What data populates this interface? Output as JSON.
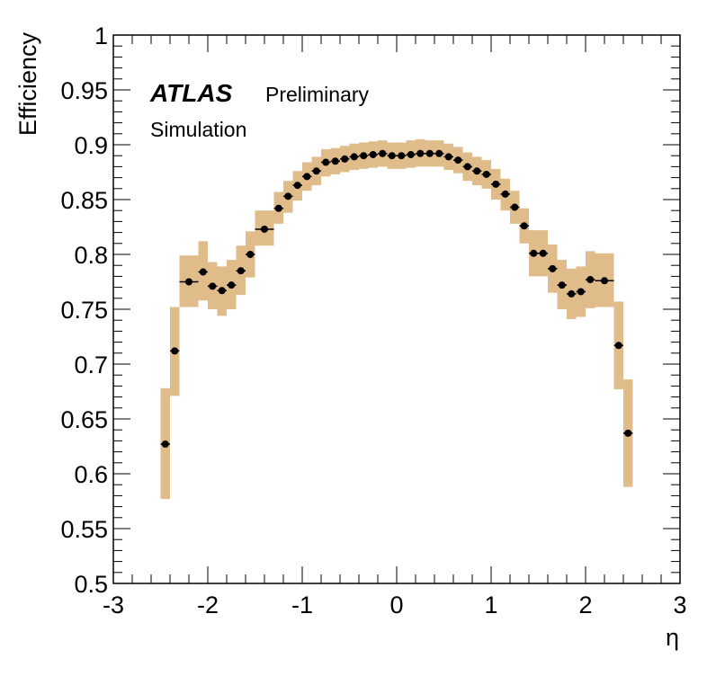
{
  "chart_data": {
    "type": "scatter",
    "xlabel": "η",
    "ylabel": "Efficiency",
    "xlim": [
      -3,
      3
    ],
    "ylim": [
      0.5,
      1
    ],
    "x_ticks": [
      -3,
      -2,
      -1,
      0,
      1,
      2,
      3
    ],
    "y_ticks": [
      0.5,
      0.55,
      0.6,
      0.65,
      0.7,
      0.75,
      0.8,
      0.85,
      0.9,
      0.95,
      1
    ],
    "x_tick_labels": [
      "-3",
      "-2",
      "-1",
      "0",
      "1",
      "2",
      "3"
    ],
    "y_tick_labels": [
      "0.5",
      "0.55",
      "0.6",
      "0.65",
      "0.7",
      "0.75",
      "0.8",
      "0.85",
      "0.9",
      "0.95",
      "1"
    ],
    "grid": false,
    "annotations": {
      "atlas": "ATLAS",
      "status": "Preliminary",
      "sample": "Simulation"
    },
    "band_color": "#e0bc8a",
    "marker_color": "#000000",
    "bin_width": 0.1,
    "points": [
      {
        "x": -2.45,
        "y": 0.627,
        "band": [
          0.577,
          0.678
        ]
      },
      {
        "x": -2.35,
        "y": 0.712,
        "band": [
          0.671,
          0.752
        ]
      },
      {
        "x": -2.2,
        "y": 0.775,
        "band": [
          0.752,
          0.799
        ],
        "width": 0.2
      },
      {
        "x": -2.05,
        "y": 0.784,
        "band": [
          0.758,
          0.812
        ]
      },
      {
        "x": -1.95,
        "y": 0.771,
        "band": [
          0.75,
          0.793
        ]
      },
      {
        "x": -1.85,
        "y": 0.767,
        "band": [
          0.744,
          0.789
        ]
      },
      {
        "x": -1.75,
        "y": 0.772,
        "band": [
          0.75,
          0.795
        ]
      },
      {
        "x": -1.65,
        "y": 0.785,
        "band": [
          0.763,
          0.808
        ]
      },
      {
        "x": -1.55,
        "y": 0.8,
        "band": [
          0.779,
          0.821
        ]
      },
      {
        "x": -1.4,
        "y": 0.823,
        "band": [
          0.808,
          0.84
        ],
        "width": 0.2
      },
      {
        "x": -1.25,
        "y": 0.842,
        "band": [
          0.828,
          0.857
        ]
      },
      {
        "x": -1.15,
        "y": 0.853,
        "band": [
          0.838,
          0.867
        ]
      },
      {
        "x": -1.05,
        "y": 0.863,
        "band": [
          0.849,
          0.876
        ]
      },
      {
        "x": -0.95,
        "y": 0.871,
        "band": [
          0.858,
          0.884
        ]
      },
      {
        "x": -0.85,
        "y": 0.876,
        "band": [
          0.863,
          0.889
        ]
      },
      {
        "x": -0.75,
        "y": 0.884,
        "band": [
          0.871,
          0.896
        ]
      },
      {
        "x": -0.65,
        "y": 0.885,
        "band": [
          0.873,
          0.897
        ]
      },
      {
        "x": -0.55,
        "y": 0.887,
        "band": [
          0.875,
          0.899
        ]
      },
      {
        "x": -0.45,
        "y": 0.889,
        "band": [
          0.877,
          0.901
        ]
      },
      {
        "x": -0.35,
        "y": 0.89,
        "band": [
          0.878,
          0.902
        ]
      },
      {
        "x": -0.25,
        "y": 0.891,
        "band": [
          0.879,
          0.903
        ]
      },
      {
        "x": -0.15,
        "y": 0.892,
        "band": [
          0.88,
          0.904
        ]
      },
      {
        "x": -0.05,
        "y": 0.89,
        "band": [
          0.878,
          0.902
        ]
      },
      {
        "x": 0.05,
        "y": 0.89,
        "band": [
          0.878,
          0.902
        ]
      },
      {
        "x": 0.15,
        "y": 0.891,
        "band": [
          0.879,
          0.904
        ]
      },
      {
        "x": 0.25,
        "y": 0.892,
        "band": [
          0.88,
          0.905
        ]
      },
      {
        "x": 0.35,
        "y": 0.892,
        "band": [
          0.88,
          0.904
        ]
      },
      {
        "x": 0.45,
        "y": 0.892,
        "band": [
          0.88,
          0.904
        ]
      },
      {
        "x": 0.55,
        "y": 0.889,
        "band": [
          0.877,
          0.901
        ]
      },
      {
        "x": 0.65,
        "y": 0.886,
        "band": [
          0.874,
          0.898
        ]
      },
      {
        "x": 0.75,
        "y": 0.88,
        "band": [
          0.867,
          0.893
        ]
      },
      {
        "x": 0.85,
        "y": 0.876,
        "band": [
          0.863,
          0.889
        ]
      },
      {
        "x": 0.95,
        "y": 0.873,
        "band": [
          0.86,
          0.886
        ]
      },
      {
        "x": 1.05,
        "y": 0.864,
        "band": [
          0.85,
          0.878
        ]
      },
      {
        "x": 1.15,
        "y": 0.855,
        "band": [
          0.84,
          0.869
        ]
      },
      {
        "x": 1.25,
        "y": 0.843,
        "band": [
          0.828,
          0.858
        ]
      },
      {
        "x": 1.35,
        "y": 0.826,
        "band": [
          0.81,
          0.842
        ]
      },
      {
        "x": 1.45,
        "y": 0.801,
        "band": [
          0.78,
          0.822
        ]
      },
      {
        "x": 1.55,
        "y": 0.801,
        "band": [
          0.78,
          0.822
        ]
      },
      {
        "x": 1.65,
        "y": 0.787,
        "band": [
          0.765,
          0.809
        ]
      },
      {
        "x": 1.75,
        "y": 0.772,
        "band": [
          0.75,
          0.795
        ]
      },
      {
        "x": 1.85,
        "y": 0.764,
        "band": [
          0.741,
          0.787
        ]
      },
      {
        "x": 1.95,
        "y": 0.766,
        "band": [
          0.743,
          0.789
        ]
      },
      {
        "x": 2.05,
        "y": 0.777,
        "band": [
          0.751,
          0.803
        ]
      },
      {
        "x": 2.2,
        "y": 0.776,
        "band": [
          0.752,
          0.801
        ],
        "width": 0.2
      },
      {
        "x": 2.35,
        "y": 0.717,
        "band": [
          0.677,
          0.757
        ]
      },
      {
        "x": 2.45,
        "y": 0.637,
        "band": [
          0.588,
          0.686
        ]
      }
    ]
  }
}
